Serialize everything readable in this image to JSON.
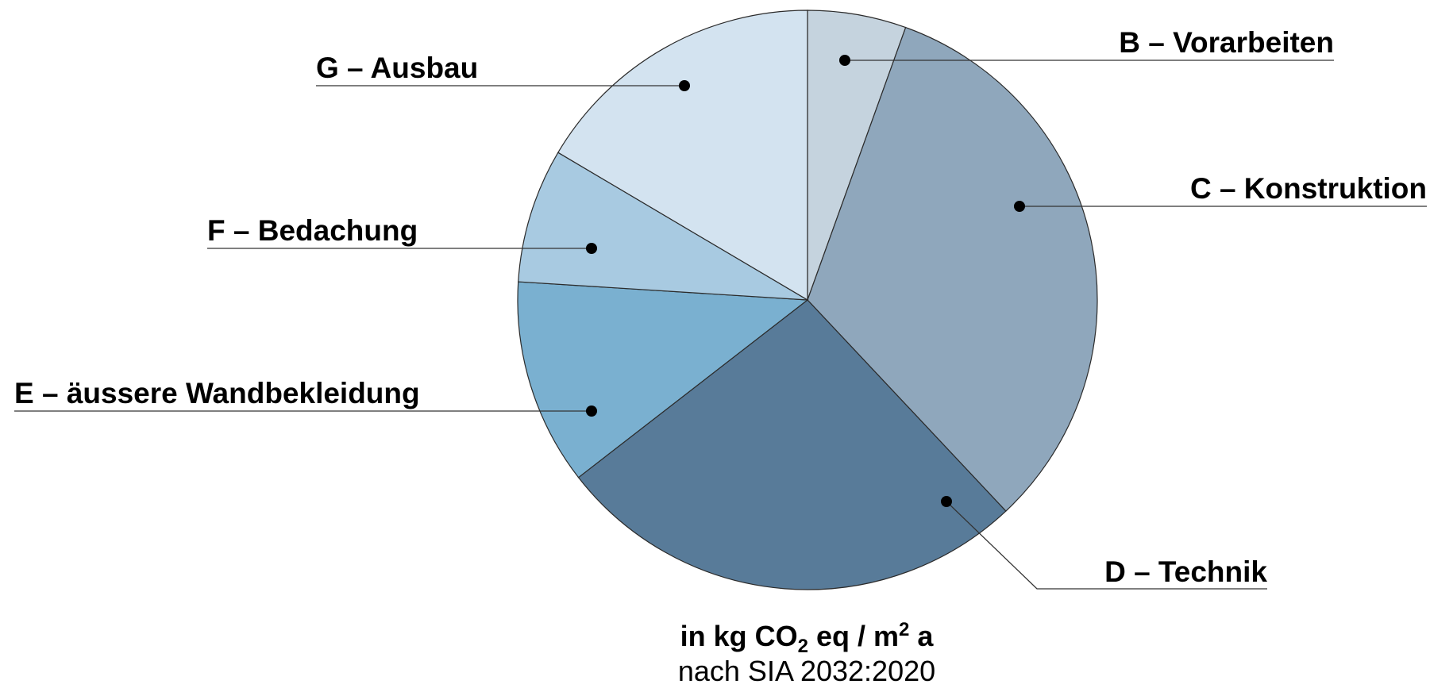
{
  "chart_data": {
    "type": "pie",
    "slices": [
      {
        "label": "B – Vorarbeiten",
        "value": 5.5,
        "color": "#c5d3de"
      },
      {
        "label": "C – Konstruktion",
        "value": 32.5,
        "color": "#8fa7bc"
      },
      {
        "label": "D – Technik",
        "value": 26.5,
        "color": "#587b99"
      },
      {
        "label": "E – äussere Wandbekleidung",
        "value": 11.5,
        "color": "#7ab0d0"
      },
      {
        "label": "F – Bedachung",
        "value": 7.5,
        "color": "#a8cae1"
      },
      {
        "label": "G – Ausbau",
        "value": 16.5,
        "color": "#d3e3f0"
      }
    ],
    "units": {
      "prefix": "in kg CO",
      "sub": "2",
      "middle": " eq / m",
      "sup": "2",
      "suffix": " a"
    },
    "source": "nach SIA 2032:2020"
  }
}
